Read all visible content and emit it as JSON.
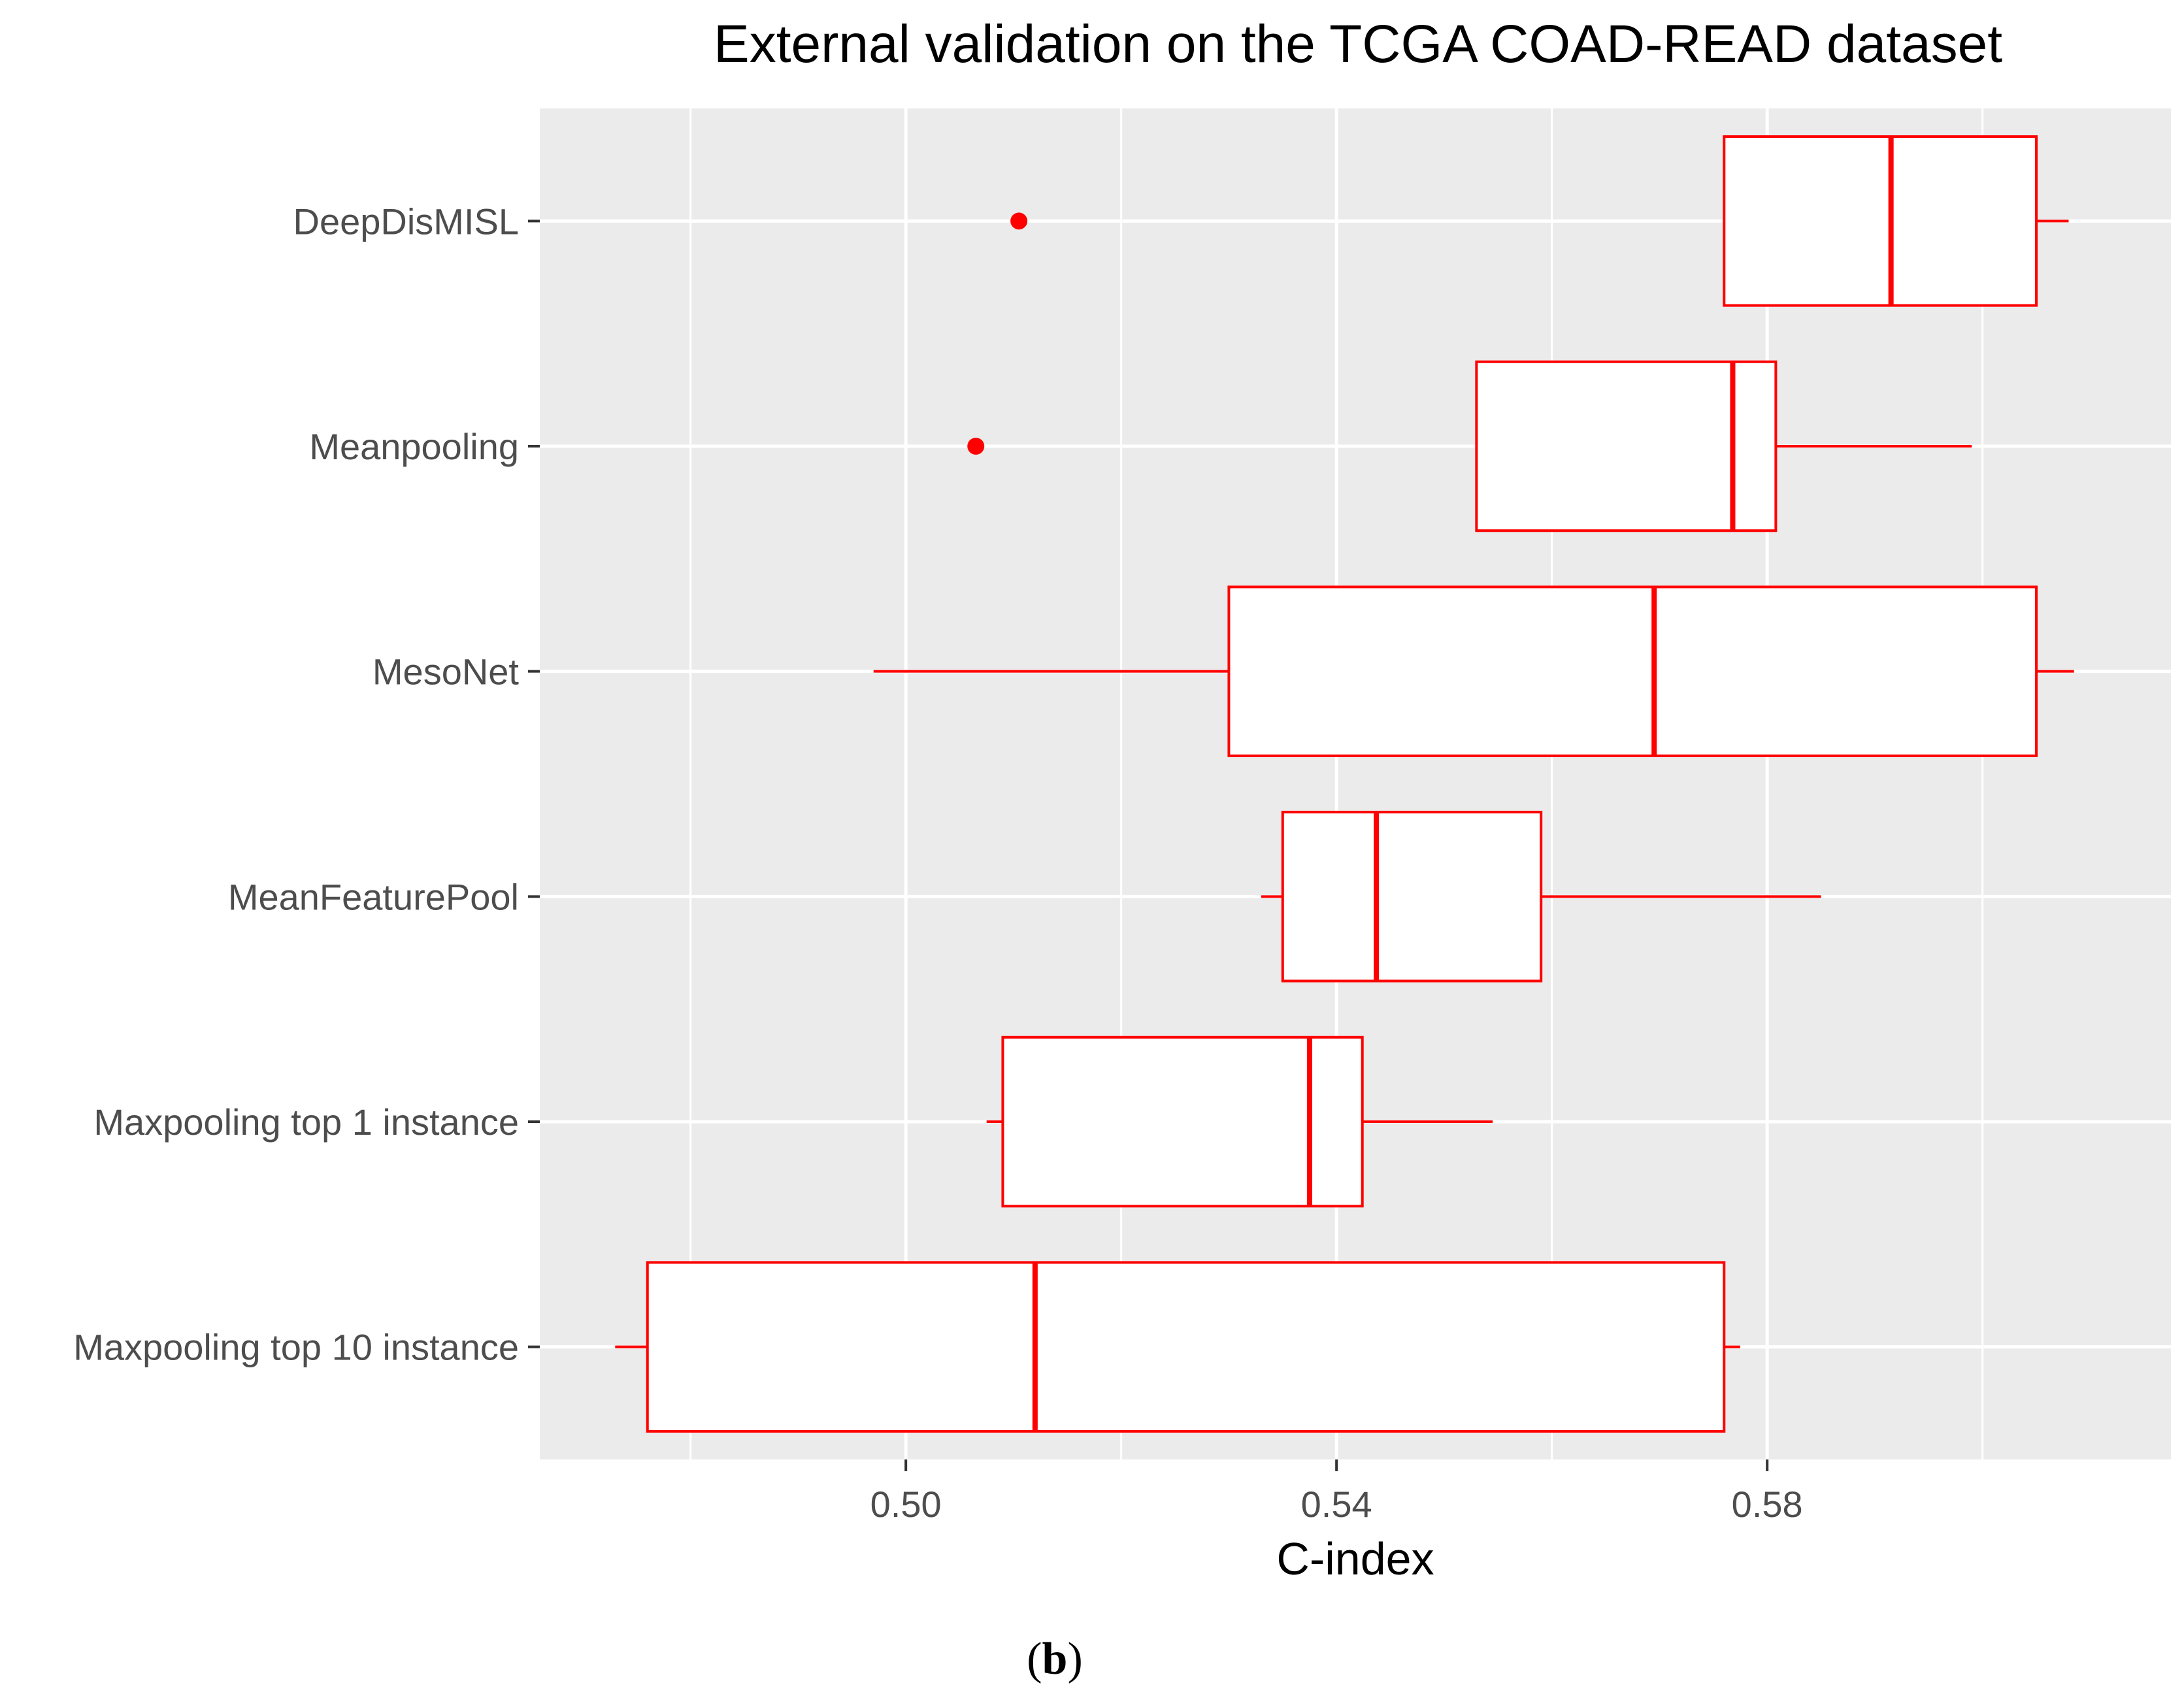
{
  "chart_data": {
    "type": "boxplot",
    "title": "External validation on the TCGA COAD-READ dataset",
    "xlabel": "C-index",
    "ylabel": "",
    "xlim": [
      0.466,
      0.6175
    ],
    "x_ticks": [
      0.5,
      0.54,
      0.58
    ],
    "x_tick_labels": [
      "0.50",
      "0.54",
      "0.58"
    ],
    "x_minor_ticks": [
      0.48,
      0.52,
      0.56,
      0.6
    ],
    "grid": true,
    "orientation": "horizontal",
    "color": "#ff0000",
    "background": "#ebebeb",
    "categories": [
      "DeepDisMISL",
      "Meanpooling",
      "MesoNet",
      "MeanFeaturePool",
      "Maxpooling top 1 instance",
      "Maxpooling top 10 instance"
    ],
    "boxes": [
      {
        "name": "DeepDisMISL",
        "whisker_low": 0.576,
        "q1": 0.576,
        "median": 0.5915,
        "q3": 0.605,
        "whisker_high": 0.608,
        "outliers": [
          0.5105
        ]
      },
      {
        "name": "Meanpooling",
        "whisker_low": 0.553,
        "q1": 0.553,
        "median": 0.5768,
        "q3": 0.5808,
        "whisker_high": 0.599,
        "outliers": [
          0.5065
        ]
      },
      {
        "name": "MesoNet",
        "whisker_low": 0.497,
        "q1": 0.53,
        "median": 0.5695,
        "q3": 0.605,
        "whisker_high": 0.6085,
        "outliers": []
      },
      {
        "name": "MeanFeaturePool",
        "whisker_low": 0.533,
        "q1": 0.535,
        "median": 0.5437,
        "q3": 0.559,
        "whisker_high": 0.585,
        "outliers": []
      },
      {
        "name": "Maxpooling top 1 instance",
        "whisker_low": 0.5075,
        "q1": 0.509,
        "median": 0.5375,
        "q3": 0.5424,
        "whisker_high": 0.5545,
        "outliers": []
      },
      {
        "name": "Maxpooling top 10 instance",
        "whisker_low": 0.473,
        "q1": 0.476,
        "median": 0.512,
        "q3": 0.576,
        "whisker_high": 0.5775,
        "outliers": []
      }
    ]
  },
  "caption": {
    "open": "(",
    "letter": "b",
    "close": ")"
  }
}
